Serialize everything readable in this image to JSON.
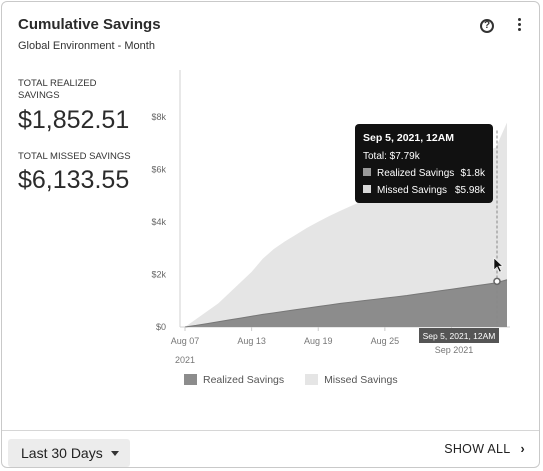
{
  "header": {
    "title": "Cumulative Savings",
    "subtitle": "Global Environment - Month"
  },
  "stats": {
    "realized_label_line1": "TOTAL REALIZED",
    "realized_label_line2": "SAVINGS",
    "realized_value": "$1,852.51",
    "missed_label": "TOTAL MISSED SAVINGS",
    "missed_value": "$6,133.55"
  },
  "tooltip": {
    "title": "Sep 5, 2021, 12AM",
    "total": "Total: $7.79k",
    "realized_label": "Realized Savings",
    "realized_value": "$1.8k",
    "missed_label": "Missed Savings",
    "missed_value": "$5.98k"
  },
  "crosshair_label": "Sep 5, 2021, 12AM",
  "colors": {
    "realized": "#8c8c8c",
    "missed": "#e5e5e5",
    "tooltip_bg": "#111111"
  },
  "chart_data": {
    "type": "area",
    "stacked": true,
    "x_ticks": [
      "Aug 07",
      "Aug 13",
      "Aug 19",
      "Aug 25",
      "Sep 2021"
    ],
    "x_year_label": "2021",
    "y_ticks": [
      "$0",
      "$2k",
      "$4k",
      "$6k",
      "$8k"
    ],
    "ylim": [
      0,
      8000
    ],
    "xlim": [
      0,
      29
    ],
    "grid": false,
    "legend": "bottom",
    "x_index": [
      0,
      1,
      2,
      3,
      4,
      5,
      6,
      7,
      8,
      9,
      10,
      11,
      12,
      13,
      14,
      15,
      16,
      17,
      18,
      19,
      20,
      21,
      22,
      23,
      24,
      25,
      26,
      27,
      28,
      29
    ],
    "series": [
      {
        "name": "Realized Savings",
        "values": [
          0,
          60,
          130,
          200,
          270,
          340,
          410,
          480,
          540,
          600,
          660,
          720,
          780,
          840,
          900,
          950,
          1000,
          1050,
          1100,
          1150,
          1200,
          1260,
          1320,
          1380,
          1440,
          1500,
          1560,
          1620,
          1680,
          1800
        ]
      },
      {
        "name": "Missed Savings",
        "values": [
          0,
          240,
          470,
          700,
          1030,
          1360,
          1690,
          2120,
          2430,
          2660,
          2860,
          3060,
          3230,
          3390,
          3530,
          3670,
          3800,
          3920,
          4030,
          4140,
          4270,
          4400,
          4520,
          4650,
          4770,
          4860,
          4960,
          5060,
          5160,
          5990
        ]
      }
    ],
    "highlight_index": 29,
    "highlight_total": 7790
  },
  "legend": {
    "realized": "Realized Savings",
    "missed": "Missed Savings"
  },
  "footer": {
    "range_label": "Last 30 Days",
    "show_all_label": "SHOW ALL",
    "chevron_glyph": "›"
  }
}
